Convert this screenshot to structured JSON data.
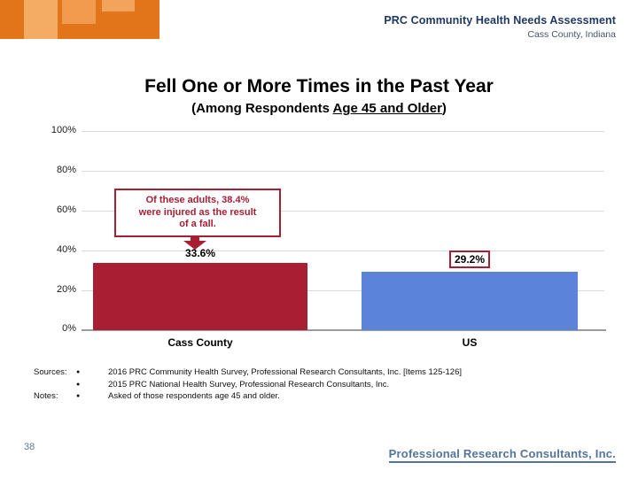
{
  "header": {
    "report_title": "PRC Community Health Needs Assessment",
    "location": "Cass County, Indiana"
  },
  "title": "Fell One or More Times in the Past Year",
  "subtitle": {
    "prefix": "(Among Respondents ",
    "underlined": "Age 45 and Older",
    "suffix": ")"
  },
  "chart_data": {
    "type": "bar",
    "title": "Fell One or More Times in the Past Year",
    "subtitle": "(Among Respondents Age 45 and Older)",
    "categories": [
      "Cass County",
      "US"
    ],
    "values": [
      33.6,
      29.2
    ],
    "value_labels": [
      "33.6%",
      "29.2%"
    ],
    "bar_colors": [
      "#A81E32",
      "#5B83D8"
    ],
    "ylim": [
      0,
      100
    ],
    "y_ticks": [
      "100%",
      "80%",
      "60%",
      "40%",
      "20%",
      "0%"
    ],
    "grid": true,
    "legend": "none",
    "boxed_value_label": "29.2%",
    "callout": {
      "line1": "Of these adults, 38.4%",
      "line2": "were injured as the result",
      "line3": "of a fall."
    }
  },
  "footnotes": {
    "bullet": "●",
    "sources_label": "Sources:",
    "notes_label": "Notes:",
    "source_1": "2016 PRC Community Health Survey, Professional Research Consultants, Inc.  [Items 125-126]",
    "source_2": "2015 PRC National Health Survey, Professional Research Consultants, Inc.",
    "note_1": "Asked of those respondents age 45 and older."
  },
  "footer": {
    "page_number": "38",
    "logo_text": "Professional Research Consultants, Inc."
  },
  "colors": {
    "banner_dark_orange": "#E2751A",
    "banner_light_orange": "#F4AB64",
    "banner_mid_orange": "#F09B4E",
    "header_navy": "#1F3864",
    "location_slate": "#44546A",
    "callout_red": "#A81E32",
    "cass_bar_red": "#A81E32",
    "us_bar_blue": "#5B83D8",
    "logo_blue": "#54749E"
  }
}
